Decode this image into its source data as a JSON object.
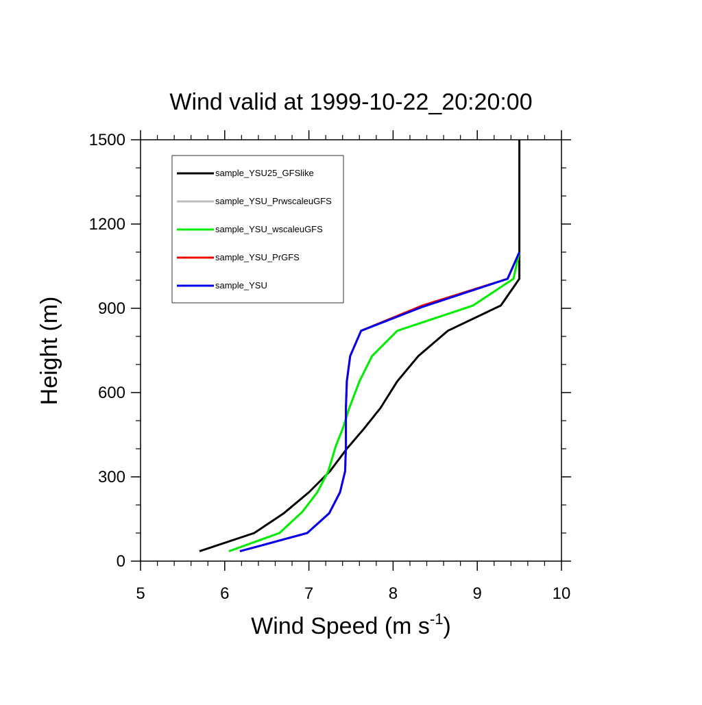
{
  "chart_data": {
    "type": "line",
    "title": "Wind valid at 1999-10-22_20:20:00",
    "xlabel": {
      "main": "Wind Speed (m s",
      "sup": "-1",
      "close": ")"
    },
    "ylabel": "Height (m)",
    "xlim": [
      5,
      10
    ],
    "ylim": [
      0,
      1500
    ],
    "xticks": [
      5,
      6,
      7,
      8,
      9,
      10
    ],
    "xtick_labels": [
      "5",
      "6",
      "7",
      "8",
      "9",
      "10"
    ],
    "yticks": [
      0,
      300,
      600,
      900,
      1200,
      1500
    ],
    "ytick_labels": [
      "0",
      "300",
      "600",
      "900",
      "1200",
      "1500"
    ],
    "grid": false,
    "legend_position": "top-left",
    "series": [
      {
        "name": "sample_YSU25_GFSlike",
        "color": "#000000",
        "points": [
          [
            5.7,
            35
          ],
          [
            6.35,
            100
          ],
          [
            6.7,
            170
          ],
          [
            7.0,
            245
          ],
          [
            7.25,
            320
          ],
          [
            7.45,
            400
          ],
          [
            7.65,
            470
          ],
          [
            7.85,
            545
          ],
          [
            8.05,
            640
          ],
          [
            8.3,
            730
          ],
          [
            8.65,
            820
          ],
          [
            9.28,
            910
          ],
          [
            9.5,
            1005
          ],
          [
            9.5,
            1100
          ],
          [
            9.5,
            1500
          ]
        ]
      },
      {
        "name": "sample_YSU_PrwscaleuGFS",
        "color": "#bebebe",
        "points": [
          [
            6.05,
            35
          ],
          [
            6.65,
            100
          ],
          [
            6.92,
            175
          ],
          [
            7.1,
            245
          ],
          [
            7.23,
            320
          ],
          [
            7.32,
            410
          ],
          [
            7.4,
            470
          ],
          [
            7.48,
            545
          ],
          [
            7.6,
            640
          ],
          [
            7.75,
            730
          ],
          [
            8.05,
            820
          ],
          [
            8.95,
            910
          ],
          [
            9.43,
            1005
          ],
          [
            9.5,
            1100
          ]
        ]
      },
      {
        "name": "sample_YSU_wscaleuGFS",
        "color": "#00ee00",
        "points": [
          [
            6.05,
            35
          ],
          [
            6.65,
            100
          ],
          [
            6.92,
            175
          ],
          [
            7.1,
            245
          ],
          [
            7.23,
            320
          ],
          [
            7.32,
            410
          ],
          [
            7.4,
            470
          ],
          [
            7.48,
            545
          ],
          [
            7.6,
            640
          ],
          [
            7.75,
            730
          ],
          [
            8.05,
            820
          ],
          [
            8.95,
            910
          ],
          [
            9.43,
            1005
          ],
          [
            9.5,
            1100
          ]
        ]
      },
      {
        "name": "sample_YSU_PrGFS",
        "color": "#ee0000",
        "points": [
          [
            6.18,
            35
          ],
          [
            6.98,
            100
          ],
          [
            7.24,
            170
          ],
          [
            7.37,
            245
          ],
          [
            7.43,
            320
          ],
          [
            7.44,
            410
          ],
          [
            7.44,
            470
          ],
          [
            7.44,
            545
          ],
          [
            7.45,
            640
          ],
          [
            7.49,
            730
          ],
          [
            7.62,
            820
          ],
          [
            8.35,
            910
          ],
          [
            9.36,
            1005
          ],
          [
            9.5,
            1100
          ]
        ]
      },
      {
        "name": "sample_YSU",
        "color": "#0000ee",
        "points": [
          [
            6.18,
            35
          ],
          [
            6.98,
            100
          ],
          [
            7.24,
            170
          ],
          [
            7.37,
            245
          ],
          [
            7.43,
            320
          ],
          [
            7.44,
            410
          ],
          [
            7.44,
            470
          ],
          [
            7.44,
            545
          ],
          [
            7.45,
            640
          ],
          [
            7.49,
            730
          ],
          [
            7.62,
            820
          ],
          [
            8.35,
            905
          ],
          [
            9.36,
            1005
          ],
          [
            9.5,
            1100
          ]
        ]
      }
    ]
  }
}
